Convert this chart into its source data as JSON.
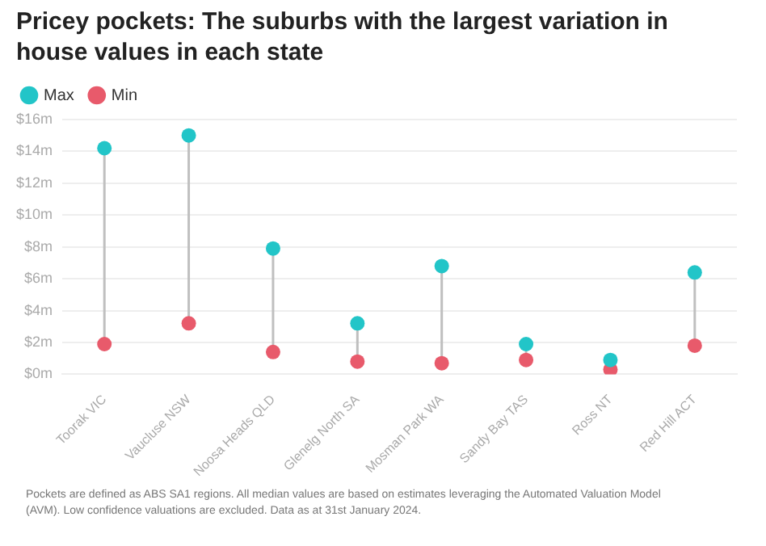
{
  "chart_data": {
    "type": "scatter",
    "title": "Pricey pockets: The suburbs with the largest variation in house values in each state",
    "categories": [
      "Toorak VIC",
      "Vaucluse NSW",
      "Noosa Heads QLD",
      "Glenelg North SA",
      "Mosman Park WA",
      "Sandy Bay TAS",
      "Ross NT",
      "Red Hill ACT"
    ],
    "series": [
      {
        "name": "Max",
        "color": "#22c5c8",
        "values": [
          14.2,
          15.0,
          7.9,
          3.2,
          6.8,
          1.9,
          0.9,
          6.4
        ]
      },
      {
        "name": "Min",
        "color": "#e85a6b",
        "values": [
          1.9,
          3.2,
          1.4,
          0.8,
          0.7,
          0.9,
          0.3,
          1.8
        ]
      }
    ],
    "ylim": [
      0,
      16
    ],
    "yticks": [
      {
        "value": 0,
        "label": "$0m"
      },
      {
        "value": 2,
        "label": "$2m"
      },
      {
        "value": 4,
        "label": "$4m"
      },
      {
        "value": 6,
        "label": "$6m"
      },
      {
        "value": 8,
        "label": "$8m"
      },
      {
        "value": 10,
        "label": "$10m"
      },
      {
        "value": 12,
        "label": "$12m"
      },
      {
        "value": 14,
        "label": "$14m"
      },
      {
        "value": 16,
        "label": "$16m"
      }
    ],
    "grid": "y",
    "legend": "top left",
    "marker": "circle",
    "annotations": [
      "Pockets are defined as ABS SA1 regions. All median values are based on estimates leveraging the Automated Valuation Model (AVM). Low confidence valuations are excluded. Data as at 31st January 2024."
    ]
  }
}
